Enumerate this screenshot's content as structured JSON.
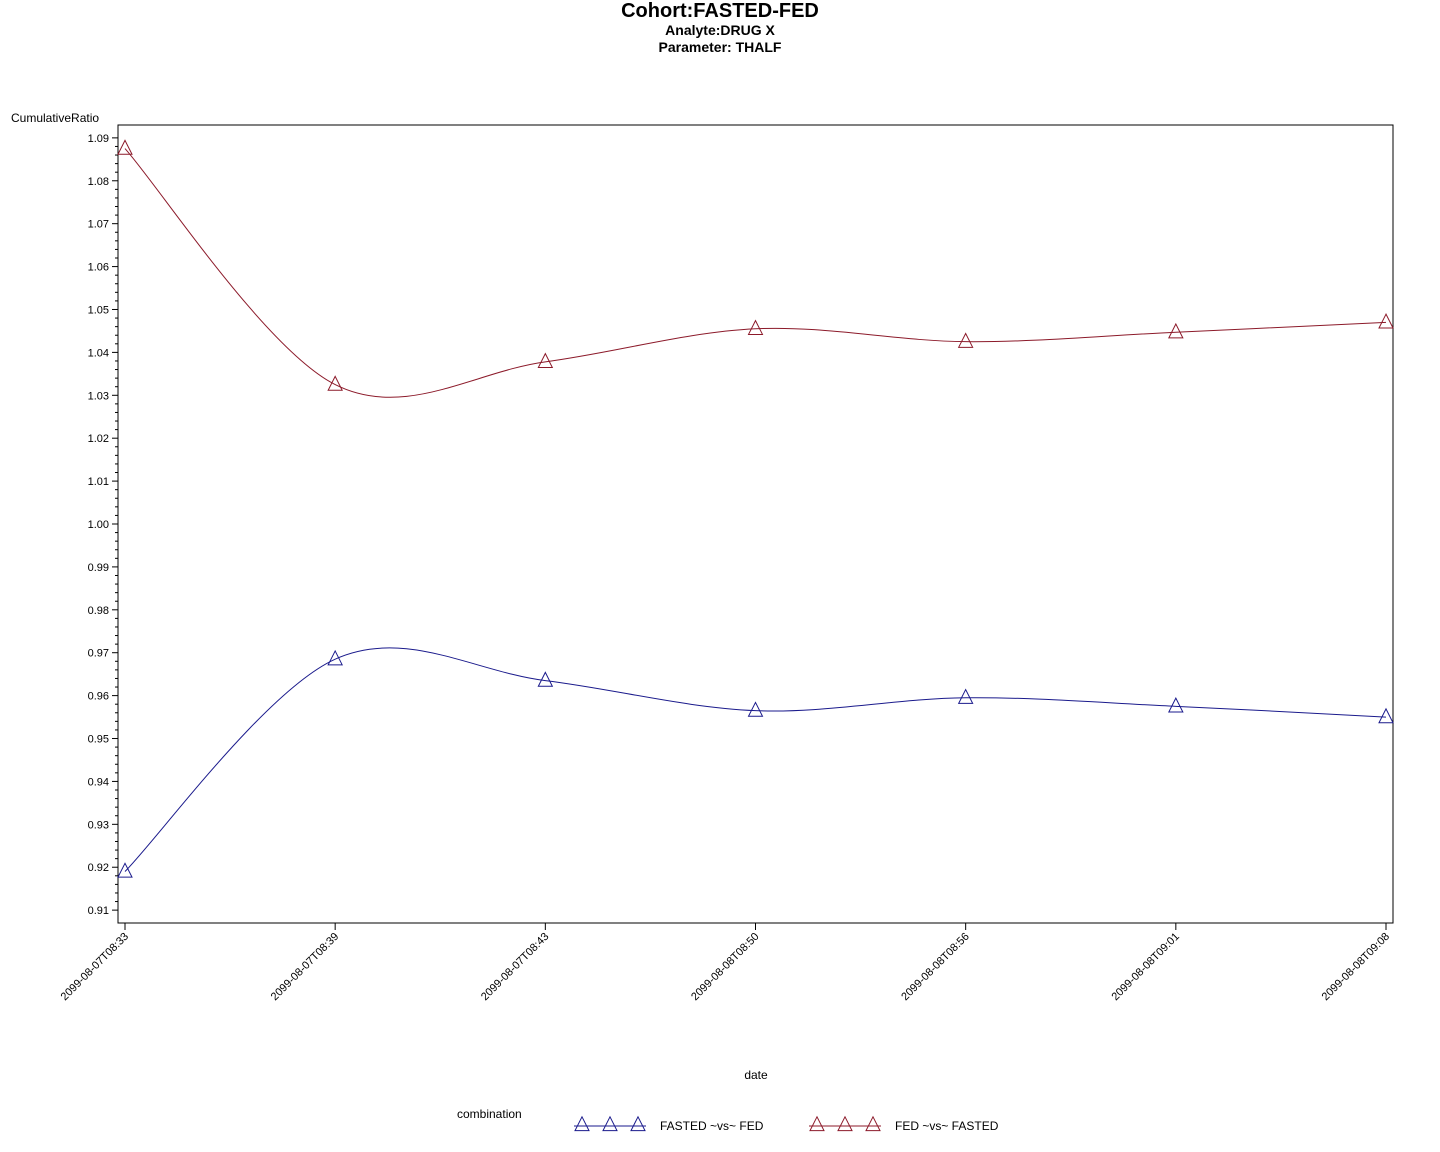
{
  "title": "Cohort:FASTED-FED",
  "subtitle1": "Analyte:DRUG X",
  "subtitle2": "Parameter: THALF",
  "chart_data": {
    "type": "line",
    "ylabel": "CumulativeRatio",
    "xlabel": "date",
    "ylim": [
      0.907,
      1.093
    ],
    "yticks": [
      "0.91",
      "0.92",
      "0.93",
      "0.94",
      "0.95",
      "0.96",
      "0.97",
      "0.98",
      "0.99",
      "1.00",
      "1.01",
      "1.02",
      "1.03",
      "1.04",
      "1.05",
      "1.06",
      "1.07",
      "1.08",
      "1.09"
    ],
    "categories": [
      "2099-08-07T08:33",
      "2099-08-07T08:39",
      "2099-08-07T08:43",
      "2099-08-08T08:50",
      "2099-08-08T08:56",
      "2099-08-08T09:01",
      "2099-08-08T09:08"
    ],
    "legend_title": "combination",
    "legend_position": "bottom",
    "grid": false,
    "marker": "triangle",
    "series": [
      {
        "name": "FASTED ~vs~ FED",
        "color": "#1a1a8c",
        "values": [
          0.919,
          0.9685,
          0.9635,
          0.9565,
          0.9595,
          0.9575,
          0.955
        ]
      },
      {
        "name": "FED ~vs~ FASTED",
        "color": "#8c1a2a",
        "values": [
          1.0875,
          1.0325,
          1.0378,
          1.0455,
          1.0425,
          1.0447,
          1.047
        ]
      }
    ]
  }
}
